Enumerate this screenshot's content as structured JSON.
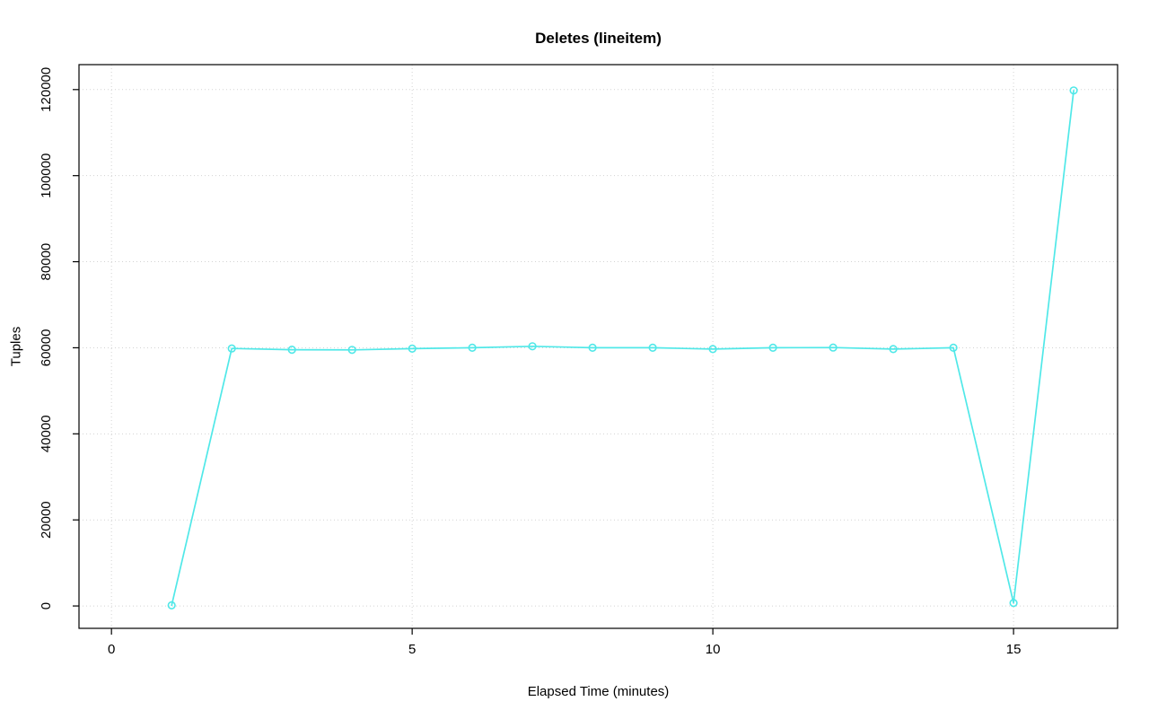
{
  "chart_data": {
    "type": "line",
    "title": "Deletes (lineitem)",
    "xlabel": "Elapsed Time (minutes)",
    "ylabel": "Tuples",
    "x": [
      1,
      2,
      3,
      4,
      5,
      6,
      7,
      8,
      9,
      10,
      11,
      12,
      13,
      14,
      15,
      16
    ],
    "y": [
      150,
      59850,
      59550,
      59500,
      59800,
      60000,
      60350,
      60000,
      60000,
      59700,
      60000,
      60050,
      59700,
      60000,
      700,
      119800
    ],
    "xlim": [
      -0.54,
      16.73
    ],
    "ylim": [
      -5200,
      125800
    ],
    "xticks": [
      0,
      5,
      10,
      15
    ],
    "yticks": [
      0,
      20000,
      40000,
      60000,
      80000,
      100000,
      120000
    ],
    "grid": true,
    "legend_position": "none",
    "line_color": "#50e8e8",
    "grid_color": "#d3d3d3",
    "axis_color": "#000000",
    "marker": "open-circle"
  }
}
